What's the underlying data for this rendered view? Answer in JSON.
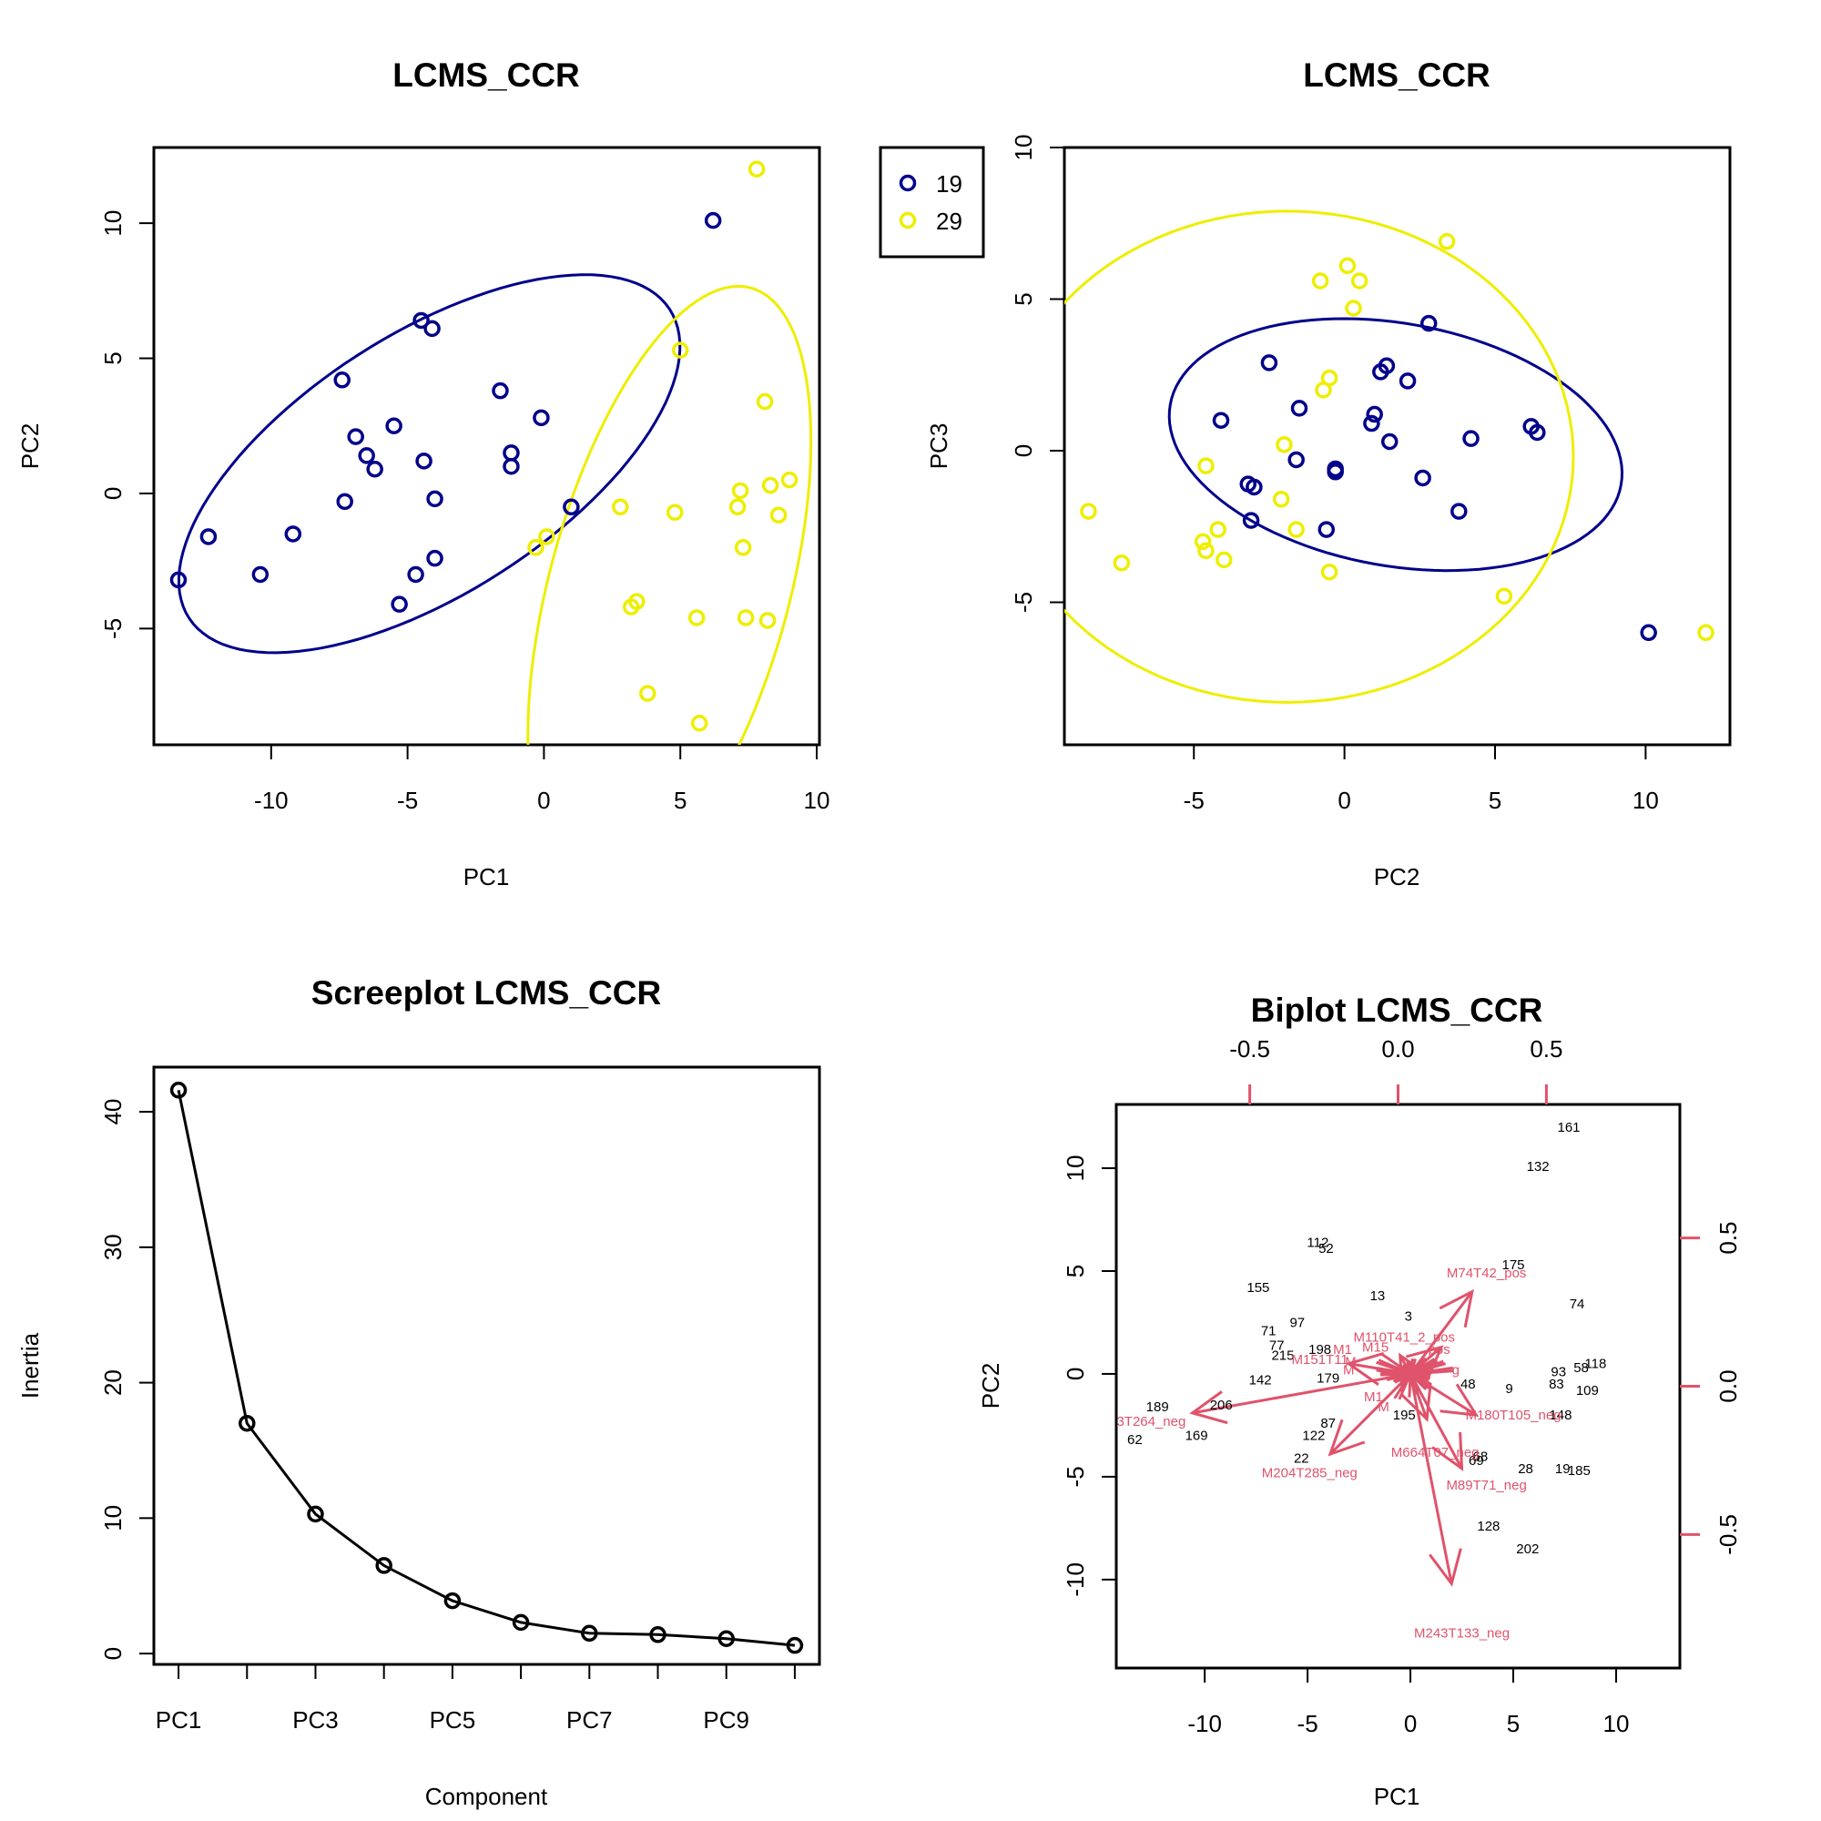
{
  "colors": {
    "group19": "#00008B",
    "group29": "#EEEE00",
    "biplot_arrow": "#DF536B",
    "axis": "#000000"
  },
  "chart_data": [
    {
      "type": "scatter",
      "title": "LCMS_CCR",
      "xlabel": "PC1",
      "ylabel": "PC2",
      "xlim": [
        -14.3,
        10.1
      ],
      "ylim": [
        -9.3,
        12.8
      ],
      "xticks": [
        -10,
        -5,
        0,
        5,
        10
      ],
      "yticks": [
        -5,
        0,
        5,
        10
      ],
      "series": [
        {
          "group": "19",
          "points": [
            [
              -13.4,
              -3.2
            ],
            [
              -12.3,
              -1.6
            ],
            [
              -10.4,
              -3.0
            ],
            [
              -9.2,
              -1.5
            ],
            [
              -7.4,
              4.2
            ],
            [
              -7.3,
              -0.3
            ],
            [
              -6.9,
              2.1
            ],
            [
              -6.5,
              1.4
            ],
            [
              -6.2,
              0.9
            ],
            [
              -5.5,
              2.5
            ],
            [
              -5.3,
              -4.1
            ],
            [
              -4.7,
              -3.0
            ],
            [
              -4.5,
              6.4
            ],
            [
              -4.4,
              1.2
            ],
            [
              -4.1,
              6.1
            ],
            [
              -4.0,
              -0.2
            ],
            [
              -4.0,
              -2.4
            ],
            [
              -1.6,
              3.8
            ],
            [
              -1.2,
              1.5
            ],
            [
              -1.2,
              1.0
            ],
            [
              -0.1,
              2.8
            ],
            [
              1.0,
              -0.5
            ],
            [
              6.2,
              10.1
            ]
          ]
        },
        {
          "group": "29",
          "points": [
            [
              -0.3,
              -2.0
            ],
            [
              0.1,
              -1.6
            ],
            [
              2.8,
              -0.5
            ],
            [
              3.2,
              -4.2
            ],
            [
              3.4,
              -4.0
            ],
            [
              3.8,
              -7.4
            ],
            [
              4.8,
              -0.7
            ],
            [
              5.0,
              5.3
            ],
            [
              5.6,
              -4.6
            ],
            [
              5.7,
              -8.5
            ],
            [
              7.1,
              -0.5
            ],
            [
              7.2,
              0.1
            ],
            [
              7.3,
              -2.0
            ],
            [
              7.4,
              -4.6
            ],
            [
              7.8,
              12.0
            ],
            [
              8.1,
              3.4
            ],
            [
              8.2,
              -4.7
            ],
            [
              8.3,
              0.3
            ],
            [
              8.6,
              -0.8
            ],
            [
              9.0,
              0.5
            ]
          ]
        }
      ],
      "ellipses": [
        {
          "group": "19",
          "cx": -4.2,
          "cy": 1.1,
          "a": 10.5,
          "b": 4.8,
          "angle_deg": 33
        },
        {
          "group": "29",
          "cx": 4.6,
          "cy": -3.5,
          "a": 11.5,
          "b": 4.4,
          "angle_deg": 75
        }
      ]
    },
    {
      "type": "scatter",
      "title": "LCMS_CCR",
      "xlabel": "PC2",
      "ylabel": "PC3",
      "xlim": [
        -9.3,
        12.8
      ],
      "ylim": [
        -9.7,
        10.0
      ],
      "xticks": [
        -5,
        0,
        5,
        10
      ],
      "yticks": [
        -5,
        0,
        5,
        10
      ],
      "legend": {
        "position": "top-left outside",
        "entries": [
          "19",
          "29"
        ]
      },
      "series": [
        {
          "group": "19",
          "points": [
            [
              -2.5,
              2.9
            ],
            [
              -4.1,
              1.0
            ],
            [
              -1.5,
              1.4
            ],
            [
              -1.6,
              -0.3
            ],
            [
              -3.2,
              -1.1
            ],
            [
              -3.0,
              -1.2
            ],
            [
              -3.1,
              -2.3
            ],
            [
              -0.6,
              -2.6
            ],
            [
              -0.3,
              -0.6
            ],
            [
              -0.3,
              -0.7
            ],
            [
              0.9,
              0.9
            ],
            [
              1.0,
              1.2
            ],
            [
              1.2,
              2.6
            ],
            [
              1.4,
              2.8
            ],
            [
              1.5,
              0.3
            ],
            [
              2.1,
              2.3
            ],
            [
              2.6,
              -0.9
            ],
            [
              2.8,
              4.2
            ],
            [
              3.8,
              -2.0
            ],
            [
              4.2,
              0.4
            ],
            [
              6.2,
              0.8
            ],
            [
              6.4,
              0.6
            ],
            [
              10.1,
              -6.0
            ]
          ]
        },
        {
          "group": "29",
          "points": [
            [
              -8.5,
              -2.0
            ],
            [
              -7.4,
              -3.7
            ],
            [
              -4.7,
              -3.0
            ],
            [
              -4.6,
              -3.3
            ],
            [
              -4.2,
              -2.6
            ],
            [
              -4.0,
              -3.6
            ],
            [
              -4.6,
              -0.5
            ],
            [
              -2.1,
              -1.6
            ],
            [
              -1.6,
              -2.6
            ],
            [
              -2.0,
              0.2
            ],
            [
              -0.7,
              2.0
            ],
            [
              -0.5,
              2.4
            ],
            [
              -0.8,
              5.6
            ],
            [
              0.1,
              6.1
            ],
            [
              0.3,
              4.7
            ],
            [
              0.5,
              5.6
            ],
            [
              -0.5,
              -4.0
            ],
            [
              3.4,
              6.9
            ],
            [
              5.3,
              -4.8
            ],
            [
              12.0,
              -6.0
            ]
          ]
        }
      ],
      "ellipses": [
        {
          "group": "19",
          "cx": 1.7,
          "cy": 0.2,
          "a": 7.6,
          "b": 4.0,
          "angle_deg": -10
        },
        {
          "group": "29",
          "cx": -1.9,
          "cy": -0.2,
          "a": 9.5,
          "b": 8.1,
          "angle_deg": 0
        }
      ]
    },
    {
      "type": "line",
      "title": "Screeplot LCMS_CCR",
      "xlabel": "Component",
      "ylabel": "Inertia",
      "categories": [
        "PC1",
        "PC2",
        "PC3",
        "PC4",
        "PC5",
        "PC6",
        "PC7",
        "PC8",
        "PC9",
        "PC10"
      ],
      "tick_labels": [
        "PC1",
        "",
        "PC3",
        "",
        "PC5",
        "",
        "PC7",
        "",
        "PC9",
        ""
      ],
      "values": [
        41.6,
        17.0,
        10.3,
        6.5,
        3.9,
        2.3,
        1.5,
        1.4,
        1.1,
        0.6
      ],
      "ylim": [
        -0.8,
        43.3
      ],
      "yticks": [
        0,
        10,
        20,
        30,
        40
      ]
    },
    {
      "type": "scatter",
      "title": "Biplot LCMS_CCR",
      "xlabel": "PC1",
      "ylabel": "PC2",
      "xlim": [
        -14.3,
        13.1
      ],
      "ylim": [
        -14.3,
        13.1
      ],
      "xticks": [
        -10,
        -5,
        0,
        5,
        10
      ],
      "yticks": [
        -10,
        -5,
        0,
        5,
        10
      ],
      "loading_ticks": [
        "-0.5",
        "0.0",
        "0.5"
      ],
      "sample_labels": [
        {
          "t": "161",
          "x": 7.7,
          "y": 12.0
        },
        {
          "t": "132",
          "x": 6.2,
          "y": 10.1
        },
        {
          "t": "112",
          "x": -4.5,
          "y": 6.4
        },
        {
          "t": "52",
          "x": -4.1,
          "y": 6.1
        },
        {
          "t": "175",
          "x": 5.0,
          "y": 5.3
        },
        {
          "t": "155",
          "x": -7.4,
          "y": 4.2
        },
        {
          "t": "13",
          "x": -1.6,
          "y": 3.8
        },
        {
          "t": "74",
          "x": 8.1,
          "y": 3.4
        },
        {
          "t": "97",
          "x": -5.5,
          "y": 2.5
        },
        {
          "t": "3",
          "x": -0.1,
          "y": 2.8
        },
        {
          "t": "71",
          "x": -6.9,
          "y": 2.1
        },
        {
          "t": "77",
          "x": -6.5,
          "y": 1.4
        },
        {
          "t": "215",
          "x": -6.2,
          "y": 0.9
        },
        {
          "t": "198",
          "x": -4.4,
          "y": 1.2
        },
        {
          "t": "142",
          "x": -7.3,
          "y": -0.3
        },
        {
          "t": "179",
          "x": -4.0,
          "y": -0.2
        },
        {
          "t": "93",
          "x": 7.2,
          "y": 0.1
        },
        {
          "t": "58",
          "x": 8.3,
          "y": 0.3
        },
        {
          "t": "118",
          "x": 9.0,
          "y": 0.5
        },
        {
          "t": "83",
          "x": 7.1,
          "y": -0.5
        },
        {
          "t": "109",
          "x": 8.6,
          "y": -0.8
        },
        {
          "t": "9",
          "x": 4.8,
          "y": -0.7
        },
        {
          "t": "48",
          "x": 2.8,
          "y": -0.5
        },
        {
          "t": "189",
          "x": -12.3,
          "y": -1.6
        },
        {
          "t": "206",
          "x": -9.2,
          "y": -1.5
        },
        {
          "t": "195",
          "x": -0.3,
          "y": -2.0
        },
        {
          "t": "148",
          "x": 7.3,
          "y": -2.0
        },
        {
          "t": "87",
          "x": -4.0,
          "y": -2.4
        },
        {
          "t": "62",
          "x": -13.4,
          "y": -3.2
        },
        {
          "t": "169",
          "x": -10.4,
          "y": -3.0
        },
        {
          "t": "122",
          "x": -4.7,
          "y": -3.0
        },
        {
          "t": "22",
          "x": -5.3,
          "y": -4.1
        },
        {
          "t": "68",
          "x": 3.4,
          "y": -4.0
        },
        {
          "t": "69",
          "x": 3.2,
          "y": -4.2
        },
        {
          "t": "28",
          "x": 5.6,
          "y": -4.6
        },
        {
          "t": "19",
          "x": 7.4,
          "y": -4.6
        },
        {
          "t": "185",
          "x": 8.2,
          "y": -4.7
        },
        {
          "t": "128",
          "x": 3.8,
          "y": -7.4
        },
        {
          "t": "202",
          "x": 5.7,
          "y": -8.5
        }
      ],
      "arrows": [
        {
          "x": 3.0,
          "y": 4.0
        },
        {
          "x": -10.6,
          "y": -1.9
        },
        {
          "x": -3.9,
          "y": -3.9
        },
        {
          "x": -3.0,
          "y": 0.5
        },
        {
          "x": 2.5,
          "y": -4.6
        },
        {
          "x": 3.2,
          "y": -2.0
        },
        {
          "x": 2.0,
          "y": -10.2
        },
        {
          "x": 1.5,
          "y": 1.3
        },
        {
          "x": 0.8,
          "y": -2.2
        },
        {
          "x": -0.5,
          "y": 0.9
        }
      ],
      "arrow_labels": [
        {
          "t": "M74T42_pos",
          "x": 3.7,
          "y": 4.9
        },
        {
          "t": "M110T41_2_pos",
          "x": -0.3,
          "y": 1.8
        },
        {
          "t": "M1",
          "x": -3.3,
          "y": 1.2
        },
        {
          "t": "M15",
          "x": -1.7,
          "y": 1.3
        },
        {
          "t": "pos",
          "x": 1.4,
          "y": 1.2
        },
        {
          "t": "M151T11",
          "x": -4.4,
          "y": 0.7
        },
        {
          "t": "M",
          "x": -2.9,
          "y": 0.6
        },
        {
          "t": "M",
          "x": -3.0,
          "y": 0.2
        },
        {
          "t": "g",
          "x": 2.2,
          "y": 0.2
        },
        {
          "t": "M1",
          "x": -1.8,
          "y": -1.1
        },
        {
          "t": "M",
          "x": -1.3,
          "y": -1.6
        },
        {
          "t": "M180T105_neg",
          "x": 5.0,
          "y": -2.0
        },
        {
          "t": "3T264_neg",
          "x": -12.6,
          "y": -2.3
        },
        {
          "t": "M664T07_neg",
          "x": 1.2,
          "y": -3.8
        },
        {
          "t": "M204T285_neg",
          "x": -4.9,
          "y": -4.8
        },
        {
          "t": "M89T71_neg",
          "x": 3.7,
          "y": -5.4
        },
        {
          "t": "M243T133_neg",
          "x": 2.5,
          "y": -12.6
        }
      ]
    }
  ]
}
